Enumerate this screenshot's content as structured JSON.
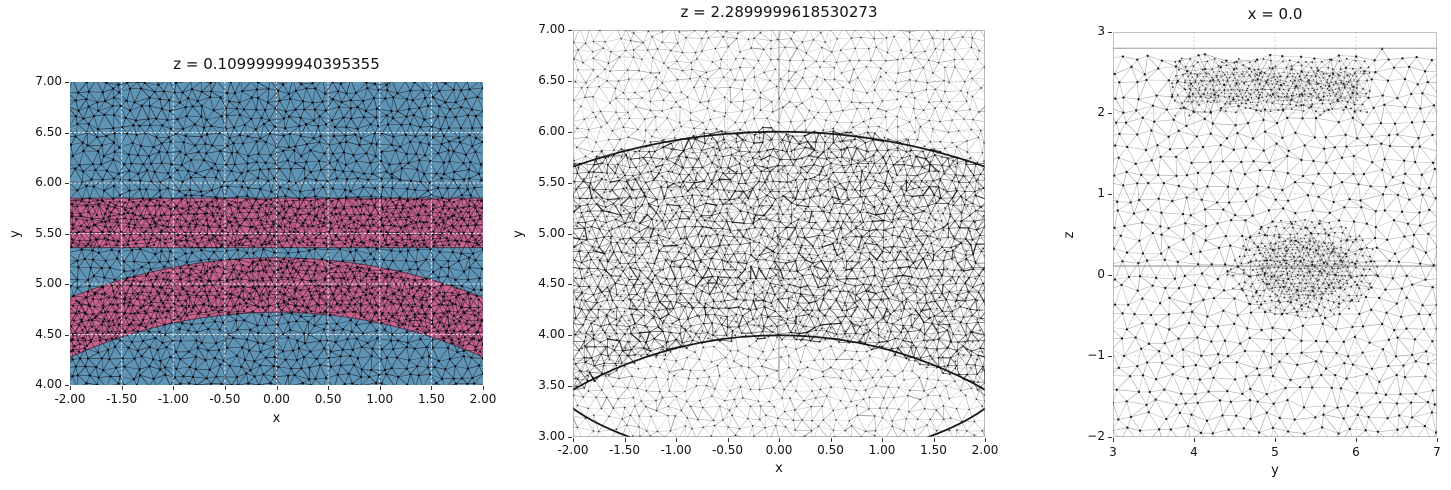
{
  "figure": {
    "background": "#ffffff"
  },
  "chart_data": [
    {
      "type": "mesh",
      "title": "z = 0.10999999940395355",
      "xlabel": "x",
      "ylabel": "y",
      "xlim": [
        -2,
        2
      ],
      "ylim": [
        4,
        7
      ],
      "xticks": {
        "values": [
          -2,
          -1.5,
          -1,
          -0.5,
          0,
          0.5,
          1,
          1.5,
          2
        ],
        "labels": [
          "-2.00",
          "-1.50",
          "-1.00",
          "-0.50",
          "0.00",
          "0.50",
          "1.00",
          "1.50",
          "2.00"
        ]
      },
      "yticks": {
        "values": [
          7,
          6.5,
          6,
          5.5,
          5,
          4.5,
          4
        ],
        "labels": [
          "7.00",
          "6.50",
          "6.00",
          "5.50",
          "5.00",
          "4.50",
          "4.00"
        ]
      },
      "grid": {
        "style": "dotted",
        "color": "#ffffff",
        "step": 0.5
      },
      "mesh": {
        "style": "filled-triangulation",
        "edge_color": "#14141e",
        "node_color": "#000000"
      },
      "regions": [
        {
          "name": "outer-material",
          "color": "#5f94b4",
          "shape": "background"
        },
        {
          "name": "horizontal-layer-band",
          "color": "#c9638f",
          "y_range": [
            5.36,
            5.85
          ]
        },
        {
          "name": "spherical-shell-band",
          "color": "#c9638f",
          "center": [
            0,
            0
          ],
          "r_inner": 4.72,
          "r_outer": 5.26
        }
      ],
      "symmetry_seam_x": 0
    },
    {
      "type": "mesh",
      "title": "z = 2.2899999618530273",
      "xlabel": "x",
      "ylabel": "y",
      "xlim": [
        -2,
        2
      ],
      "ylim": [
        3,
        7
      ],
      "xticks": {
        "values": [
          -2,
          -1.5,
          -1,
          -0.5,
          0,
          0.5,
          1,
          1.5,
          2
        ],
        "labels": [
          "-2.00",
          "-1.50",
          "-1.00",
          "-0.50",
          "0.00",
          "0.50",
          "1.00",
          "1.50",
          "2.00"
        ]
      },
      "yticks": {
        "values": [
          7,
          6.5,
          6,
          5.5,
          5,
          4.5,
          4,
          3.5,
          3
        ],
        "labels": [
          "7.00",
          "6.50",
          "6.00",
          "5.50",
          "5.00",
          "4.50",
          "4.00",
          "3.50",
          "3.00"
        ]
      },
      "grid": {
        "style": "dotted",
        "color": "#aaaaaa",
        "step": 0.5
      },
      "mesh": {
        "style": "wireframe-triangulation",
        "edge_color": "#222222",
        "node_color": "#000000"
      },
      "feature_curves": [
        {
          "name": "outer-shell-arc",
          "center": [
            0,
            0
          ],
          "radius": 6.0
        },
        {
          "name": "inner-shell-arc",
          "center": [
            0,
            0
          ],
          "radius": 4.0
        },
        {
          "name": "corner-arc-left",
          "from": [
            -2.0,
            3.28
          ],
          "to": [
            -1.45,
            3.0
          ]
        },
        {
          "name": "corner-arc-right",
          "from": [
            2.0,
            3.28
          ],
          "to": [
            1.45,
            3.0
          ]
        }
      ],
      "dense_region": {
        "shape": "annulus",
        "center": [
          0,
          0
        ],
        "r_inner": 3.95,
        "r_outer": 6.06
      },
      "symmetry_seam_x": 0
    },
    {
      "type": "mesh",
      "title": "x = 0.0",
      "xlabel": "y",
      "ylabel": "z",
      "xlim": [
        3,
        7
      ],
      "ylim": [
        -2,
        3
      ],
      "xticks": {
        "values": [
          3,
          4,
          5,
          6,
          7
        ],
        "labels": [
          "3",
          "4",
          "5",
          "6",
          "7"
        ]
      },
      "yticks": {
        "values": [
          3,
          2,
          1,
          0,
          -1,
          -2
        ],
        "labels": [
          "3",
          "2",
          "1",
          "0",
          "−1",
          "−2"
        ]
      },
      "grid": {
        "style": "dotted",
        "color": "#999999",
        "step": 1
      },
      "mesh": {
        "style": "wireframe-triangulation",
        "edge_color": "#5f5f5f",
        "node_color": "#111111"
      },
      "mesh_top_z": 2.8,
      "feature_line_z": 0.11,
      "dense_regions": [
        {
          "name": "refined-band",
          "y_range": [
            3.72,
            6.18
          ],
          "z_range": [
            1.95,
            2.68
          ]
        },
        {
          "name": "fine-band",
          "y_range": [
            3.88,
            6.06
          ],
          "z_range": [
            2.13,
            2.52
          ]
        },
        {
          "name": "refined-blob",
          "center": [
            5.35,
            0.08
          ],
          "rx": 0.95,
          "ry": 0.62
        },
        {
          "name": "fine-blob",
          "center": [
            5.35,
            0.08
          ],
          "rx": 0.6,
          "ry": 0.4
        }
      ]
    }
  ]
}
